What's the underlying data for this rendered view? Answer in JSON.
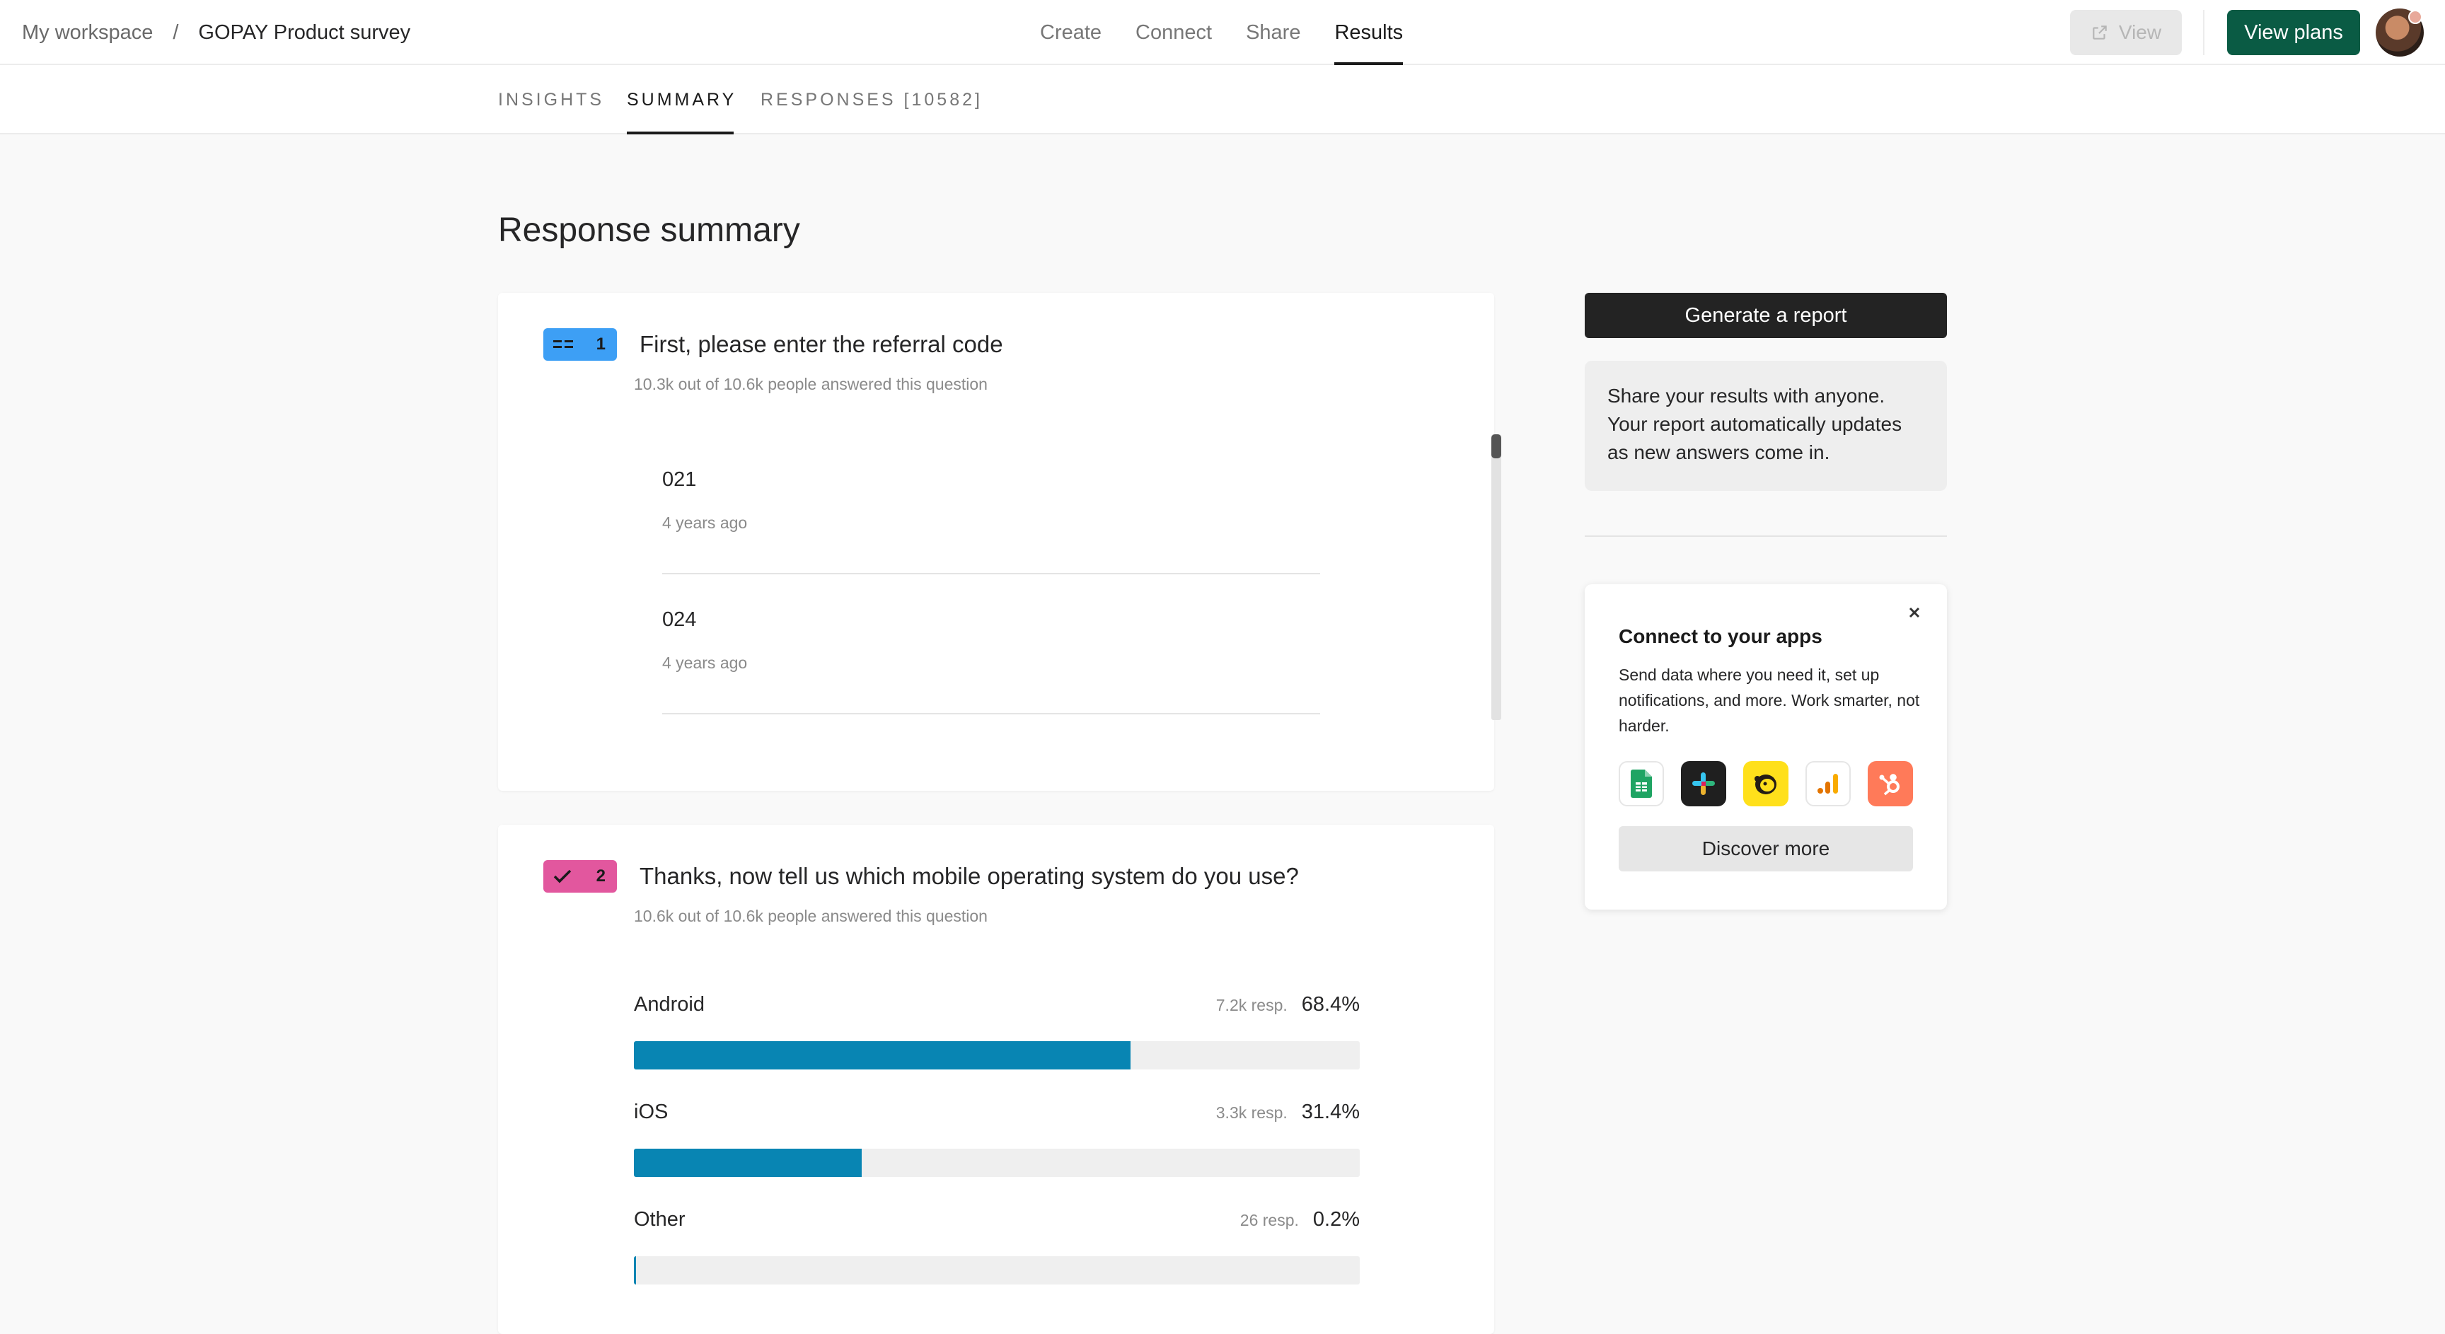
{
  "breadcrumb": {
    "workspace": "My workspace",
    "separator": "/",
    "survey": "GOPAY Product survey"
  },
  "nav": {
    "items": [
      {
        "label": "Create",
        "active": false
      },
      {
        "label": "Connect",
        "active": false
      },
      {
        "label": "Share",
        "active": false
      },
      {
        "label": "Results",
        "active": true
      }
    ]
  },
  "header": {
    "view_label": "View",
    "plans_label": "View plans"
  },
  "subtabs": [
    {
      "label": "INSIGHTS",
      "active": false
    },
    {
      "label": "SUMMARY",
      "active": true
    },
    {
      "label": "RESPONSES [10582]",
      "active": false
    }
  ],
  "page_title": "Response summary",
  "questions": [
    {
      "number": "1",
      "badge_color": "#3d9ff5",
      "title": "First, please enter the referral code",
      "answered": "10.3k out of 10.6k people answered this question",
      "responses": [
        {
          "value": "021",
          "time": "4 years ago"
        },
        {
          "value": "024",
          "time": "4 years ago"
        }
      ]
    },
    {
      "number": "2",
      "badge_color": "#e2579e",
      "title": "Thanks, now tell us which mobile operating system do you use?",
      "answered": "10.6k out of 10.6k people answered this question",
      "choices": [
        {
          "label": "Android",
          "count": "7.2k resp.",
          "percent": "68.4%",
          "fraction": 0.684
        },
        {
          "label": "iOS",
          "count": "3.3k resp.",
          "percent": "31.4%",
          "fraction": 0.314
        },
        {
          "label": "Other",
          "count": "26 resp.",
          "percent": "0.2%",
          "fraction": 0.002
        }
      ]
    }
  ],
  "report": {
    "button_label": "Generate a report",
    "share_text": "Share your results with anyone. Your report automatically updates as new answers come in."
  },
  "apps": {
    "title": "Connect to your apps",
    "description": "Send data where you need it, set up notifications, and more. Work smarter, not harder.",
    "icons": [
      "google-sheets-icon",
      "slack-icon",
      "mailchimp-icon",
      "google-analytics-icon",
      "hubspot-icon"
    ],
    "discover_label": "Discover more"
  },
  "colors": {
    "accent": "#0a5b44",
    "bar": "#0885b3"
  }
}
